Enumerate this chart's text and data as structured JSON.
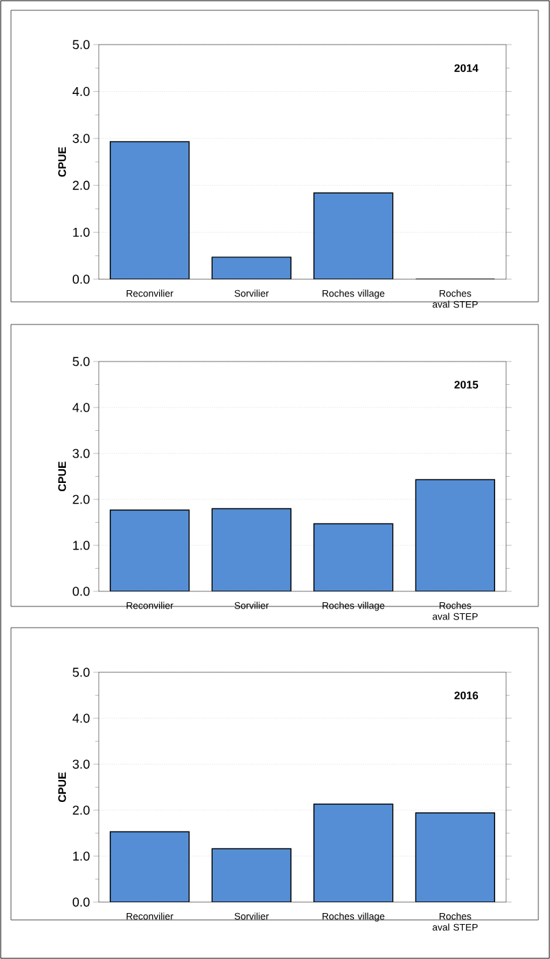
{
  "chart_data": [
    {
      "type": "bar",
      "ylabel": "CPUE",
      "annotations": [
        "2014"
      ],
      "categories": [
        "Reconvilier",
        "Sorvilier",
        "Roches village",
        "Roches aval STEP"
      ],
      "values": [
        2.93,
        0.47,
        1.84,
        0
      ],
      "color": "#558ed5",
      "ylim": [
        0,
        5
      ],
      "yticks": [
        {
          "value": 0,
          "label": "0.0"
        },
        {
          "value": 0.5,
          "label": null
        },
        {
          "value": 1,
          "label": "1.0"
        },
        {
          "value": 1.5,
          "label": null
        },
        {
          "value": 2,
          "label": "2.0"
        },
        {
          "value": 2.5,
          "label": null
        },
        {
          "value": 3,
          "label": "3.0"
        },
        {
          "value": 3.5,
          "label": null
        },
        {
          "value": 4,
          "label": "4.0"
        },
        {
          "value": 4.5,
          "label": null
        },
        {
          "value": 5,
          "label": "5.0"
        }
      ],
      "grid": "y"
    },
    {
      "type": "bar",
      "ylabel": "CPUE",
      "annotations": [
        "2015"
      ],
      "categories": [
        "Reconvilier",
        "Sorvilier",
        "Roches village",
        "Roches aval STEP"
      ],
      "values": [
        1.77,
        1.8,
        1.47,
        2.43
      ],
      "color": "#558ed5",
      "ylim": [
        0,
        5
      ],
      "yticks": [
        {
          "value": 0,
          "label": "0.0"
        },
        {
          "value": 0.5,
          "label": null
        },
        {
          "value": 1,
          "label": "1.0"
        },
        {
          "value": 1.5,
          "label": null
        },
        {
          "value": 2,
          "label": "2.0"
        },
        {
          "value": 2.5,
          "label": null
        },
        {
          "value": 3,
          "label": "3.0"
        },
        {
          "value": 3.5,
          "label": null
        },
        {
          "value": 4,
          "label": "4.0"
        },
        {
          "value": 4.5,
          "label": null
        },
        {
          "value": 5,
          "label": "5.0"
        }
      ],
      "grid": "y"
    },
    {
      "type": "bar",
      "ylabel": "CPUE",
      "annotations": [
        "2016"
      ],
      "categories": [
        "Reconvilier",
        "Sorvilier",
        "Roches village",
        "Roches aval STEP"
      ],
      "values": [
        1.53,
        1.16,
        2.13,
        1.94
      ],
      "color": "#558ed5",
      "ylim": [
        0,
        5
      ],
      "yticks": [
        {
          "value": 0,
          "label": "0.0"
        },
        {
          "value": 0.5,
          "label": null
        },
        {
          "value": 1,
          "label": "1.0"
        },
        {
          "value": 1.5,
          "label": null
        },
        {
          "value": 2,
          "label": "2.0"
        },
        {
          "value": 2.5,
          "label": null
        },
        {
          "value": 3,
          "label": "3.0"
        },
        {
          "value": 3.5,
          "label": null
        },
        {
          "value": 4,
          "label": "4.0"
        },
        {
          "value": 4.5,
          "label": null
        },
        {
          "value": 5,
          "label": "5.0"
        }
      ],
      "grid": "y"
    }
  ]
}
